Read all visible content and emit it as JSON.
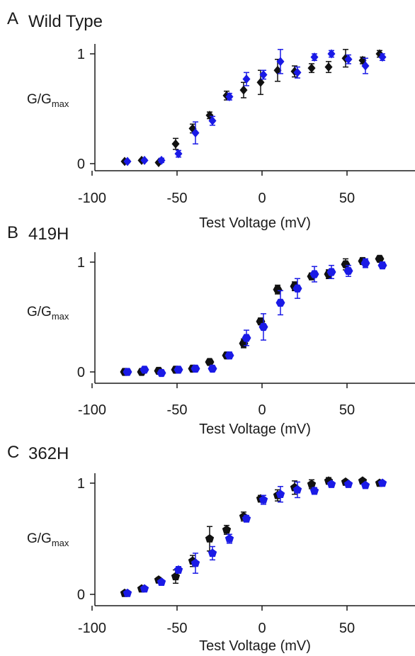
{
  "colors": {
    "black_series": "#111111",
    "blue_series": "#1a1ae6"
  },
  "chart_data": [
    {
      "type": "scatter",
      "panel_letter": "A",
      "title": "Wild Type",
      "marker": "diamond",
      "xlabel": "Test Voltage (mV)",
      "ylabel": "G/G",
      "ylabel_sub": "max",
      "xlim": [
        -100,
        90
      ],
      "ylim": [
        0,
        1
      ],
      "xticks": [
        -100,
        -50,
        0,
        50
      ],
      "yticks": [
        0,
        1
      ],
      "series": [
        {
          "color": "#111111",
          "x": [
            -80,
            -70,
            -60,
            -50,
            -40,
            -30,
            -20,
            -10,
            0,
            10,
            20,
            30,
            40,
            50,
            60,
            70
          ],
          "y": [
            0.02,
            0.03,
            0.01,
            0.18,
            0.32,
            0.44,
            0.62,
            0.67,
            0.74,
            0.85,
            0.84,
            0.87,
            0.88,
            0.96,
            0.94,
            1.0
          ],
          "err": [
            0.01,
            0.01,
            0.01,
            0.05,
            0.04,
            0.03,
            0.04,
            0.07,
            0.11,
            0.1,
            0.05,
            0.04,
            0.05,
            0.08,
            0.03,
            0.03
          ]
        },
        {
          "color": "#1a1ae6",
          "x": [
            -80,
            -70,
            -60,
            -50,
            -40,
            -30,
            -20,
            -10,
            0,
            10,
            20,
            30,
            40,
            50,
            60,
            70
          ],
          "y": [
            0.02,
            0.03,
            0.03,
            0.09,
            0.28,
            0.39,
            0.61,
            0.77,
            0.81,
            0.93,
            0.83,
            0.97,
            1.0,
            0.95,
            0.89,
            0.97
          ],
          "err": [
            0.01,
            0.01,
            0.02,
            0.03,
            0.1,
            0.04,
            0.03,
            0.06,
            0.04,
            0.11,
            0.05,
            0.03,
            0.03,
            0.04,
            0.07,
            0.03
          ]
        }
      ]
    },
    {
      "type": "scatter",
      "panel_letter": "B",
      "title": "419H",
      "marker": "hexagon",
      "xlabel": "Test Voltage (mV)",
      "ylabel": "G/G",
      "ylabel_sub": "max",
      "xlim": [
        -100,
        90
      ],
      "ylim": [
        0,
        1
      ],
      "xticks": [
        -100,
        -50,
        0,
        50
      ],
      "yticks": [
        0,
        1
      ],
      "series": [
        {
          "color": "#111111",
          "x": [
            -80,
            -70,
            -60,
            -50,
            -40,
            -30,
            -20,
            -10,
            0,
            10,
            20,
            30,
            40,
            50,
            60,
            70
          ],
          "y": [
            0.0,
            0.0,
            0.01,
            0.02,
            0.03,
            0.09,
            0.15,
            0.26,
            0.46,
            0.75,
            0.78,
            0.87,
            0.89,
            0.98,
            1.01,
            1.03
          ],
          "err": [
            0.02,
            0.02,
            0.02,
            0.01,
            0.02,
            0.02,
            0.02,
            0.04,
            0.03,
            0.04,
            0.04,
            0.03,
            0.04,
            0.05,
            0.03,
            0.02
          ]
        },
        {
          "color": "#1a1ae6",
          "x": [
            -80,
            -70,
            -60,
            -50,
            -40,
            -30,
            -20,
            -10,
            0,
            10,
            20,
            30,
            40,
            50,
            60,
            70
          ],
          "y": [
            0.0,
            0.02,
            -0.01,
            0.02,
            0.03,
            0.03,
            0.15,
            0.31,
            0.41,
            0.63,
            0.76,
            0.89,
            0.91,
            0.92,
            0.99,
            0.97
          ],
          "err": [
            0.02,
            0.02,
            0.02,
            0.02,
            0.02,
            0.02,
            0.03,
            0.07,
            0.12,
            0.11,
            0.09,
            0.07,
            0.06,
            0.05,
            0.04,
            0.03
          ]
        }
      ]
    },
    {
      "type": "scatter",
      "panel_letter": "C",
      "title": "362H",
      "marker": "pentagon",
      "xlabel": "Test Voltage (mV)",
      "ylabel": "G/G",
      "ylabel_sub": "max",
      "xlim": [
        -100,
        90
      ],
      "ylim": [
        0,
        1
      ],
      "xticks": [
        -100,
        -50,
        0,
        50
      ],
      "yticks": [
        0,
        1
      ],
      "series": [
        {
          "color": "#111111",
          "x": [
            -80,
            -70,
            -60,
            -50,
            -40,
            -30,
            -20,
            -10,
            0,
            10,
            20,
            30,
            40,
            50,
            60,
            70
          ],
          "y": [
            0.01,
            0.05,
            0.13,
            0.16,
            0.3,
            0.5,
            0.58,
            0.7,
            0.86,
            0.89,
            0.96,
            0.99,
            1.02,
            1.01,
            1.02,
            1.0
          ],
          "err": [
            0.01,
            0.01,
            0.02,
            0.06,
            0.05,
            0.11,
            0.04,
            0.04,
            0.03,
            0.05,
            0.06,
            0.04,
            0.03,
            0.02,
            0.02,
            0.01
          ]
        },
        {
          "color": "#1a1ae6",
          "x": [
            -80,
            -70,
            -60,
            -50,
            -40,
            -30,
            -20,
            -10,
            0,
            10,
            20,
            30,
            40,
            50,
            60,
            70
          ],
          "y": [
            0.01,
            0.05,
            0.11,
            0.22,
            0.28,
            0.37,
            0.5,
            0.68,
            0.85,
            0.9,
            0.94,
            0.93,
            0.99,
            0.99,
            0.98,
            1.0
          ],
          "err": [
            0.01,
            0.01,
            0.02,
            0.03,
            0.09,
            0.06,
            0.04,
            0.03,
            0.04,
            0.07,
            0.07,
            0.03,
            0.02,
            0.02,
            0.02,
            0.01
          ]
        }
      ]
    }
  ]
}
